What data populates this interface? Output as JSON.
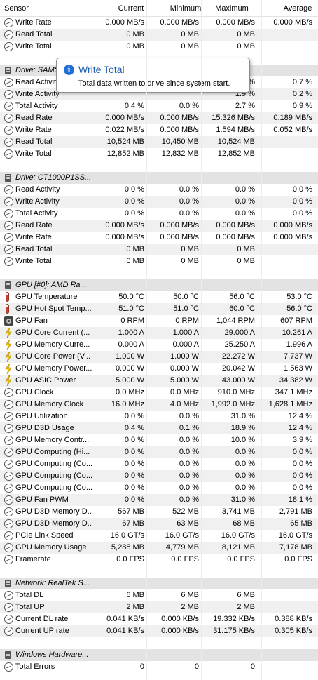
{
  "columns": [
    "Sensor",
    "Current",
    "Minimum",
    "Maximum",
    "Average"
  ],
  "rows": [
    {
      "kind": "sensor",
      "icon": "clock-icon",
      "cells": [
        "Write Rate",
        "0.000 MB/s",
        "0.000 MB/s",
        "0.000 MB/s",
        "0.000 MB/s"
      ]
    },
    {
      "kind": "sensor",
      "icon": "clock-icon",
      "cells": [
        "Read Total",
        "0 MB",
        "0 MB",
        "0 MB",
        ""
      ]
    },
    {
      "kind": "sensor",
      "icon": "clock-icon",
      "cells": [
        "Write Total",
        "0 MB",
        "0 MB",
        "0 MB",
        ""
      ]
    },
    {
      "kind": "gap"
    },
    {
      "kind": "group",
      "icon": "drive-icon",
      "label": "Drive: SAMS"
    },
    {
      "kind": "sensor",
      "icon": "clock-icon",
      "cells": [
        "Read Activity",
        "",
        "",
        "%",
        "0.7 %"
      ]
    },
    {
      "kind": "sensor",
      "icon": "clock-icon",
      "cells": [
        "Write Activity",
        "",
        "",
        "1.9 %",
        "0.2 %"
      ]
    },
    {
      "kind": "sensor",
      "icon": "clock-icon",
      "cells": [
        "Total Activity",
        "0.4 %",
        "0.0 %",
        "2.7 %",
        "0.9 %"
      ]
    },
    {
      "kind": "sensor",
      "icon": "clock-icon",
      "cells": [
        "Read Rate",
        "0.000 MB/s",
        "0.000 MB/s",
        "15.326 MB/s",
        "0.189 MB/s"
      ]
    },
    {
      "kind": "sensor",
      "icon": "clock-icon",
      "cells": [
        "Write Rate",
        "0.022 MB/s",
        "0.000 MB/s",
        "1.594 MB/s",
        "0.052 MB/s"
      ]
    },
    {
      "kind": "sensor",
      "icon": "clock-icon",
      "cells": [
        "Read Total",
        "10,524 MB",
        "10,450 MB",
        "10,524 MB",
        ""
      ]
    },
    {
      "kind": "sensor",
      "icon": "clock-icon",
      "cells": [
        "Write Total",
        "12,852 MB",
        "12,832 MB",
        "12,852 MB",
        ""
      ]
    },
    {
      "kind": "gap"
    },
    {
      "kind": "group",
      "icon": "drive-icon",
      "label": "Drive: CT1000P1SS..."
    },
    {
      "kind": "sensor",
      "icon": "clock-icon",
      "cells": [
        "Read Activity",
        "0.0 %",
        "0.0 %",
        "0.0 %",
        "0.0 %"
      ]
    },
    {
      "kind": "sensor",
      "icon": "clock-icon",
      "cells": [
        "Write Activity",
        "0.0 %",
        "0.0 %",
        "0.0 %",
        "0.0 %"
      ]
    },
    {
      "kind": "sensor",
      "icon": "clock-icon",
      "cells": [
        "Total Activity",
        "0.0 %",
        "0.0 %",
        "0.0 %",
        "0.0 %"
      ]
    },
    {
      "kind": "sensor",
      "icon": "clock-icon",
      "cells": [
        "Read Rate",
        "0.000 MB/s",
        "0.000 MB/s",
        "0.000 MB/s",
        "0.000 MB/s"
      ]
    },
    {
      "kind": "sensor",
      "icon": "clock-icon",
      "cells": [
        "Write Rate",
        "0.000 MB/s",
        "0.000 MB/s",
        "0.000 MB/s",
        "0.000 MB/s"
      ]
    },
    {
      "kind": "sensor",
      "icon": "clock-icon",
      "cells": [
        "Read Total",
        "0 MB",
        "0 MB",
        "0 MB",
        ""
      ]
    },
    {
      "kind": "sensor",
      "icon": "clock-icon",
      "cells": [
        "Write Total",
        "0 MB",
        "0 MB",
        "0 MB",
        ""
      ]
    },
    {
      "kind": "gap"
    },
    {
      "kind": "group",
      "icon": "gpu-icon",
      "label": "GPU [#0]: AMD Ra..."
    },
    {
      "kind": "sensor",
      "icon": "thermometer-icon",
      "cells": [
        "GPU Temperature",
        "50.0 °C",
        "50.0 °C",
        "56.0 °C",
        "53.0 °C"
      ]
    },
    {
      "kind": "sensor",
      "icon": "thermometer-icon",
      "cells": [
        "GPU Hot Spot Temp...",
        "51.0 °C",
        "51.0 °C",
        "60.0 °C",
        "56.0 °C"
      ]
    },
    {
      "kind": "sensor",
      "icon": "fan-icon",
      "cells": [
        "GPU Fan",
        "0 RPM",
        "0 RPM",
        "1,044 RPM",
        "607 RPM"
      ]
    },
    {
      "kind": "sensor",
      "icon": "bolt-icon",
      "cells": [
        "GPU Core Current (...",
        "1.000 A",
        "1.000 A",
        "29.000 A",
        "10.261 A"
      ]
    },
    {
      "kind": "sensor",
      "icon": "bolt-icon",
      "cells": [
        "GPU Memory Curre...",
        "0.000 A",
        "0.000 A",
        "25.250 A",
        "1.996 A"
      ]
    },
    {
      "kind": "sensor",
      "icon": "bolt-icon",
      "cells": [
        "GPU Core Power (V...",
        "1.000 W",
        "1.000 W",
        "22.272 W",
        "7.737 W"
      ]
    },
    {
      "kind": "sensor",
      "icon": "bolt-icon",
      "cells": [
        "GPU Memory Power...",
        "0.000 W",
        "0.000 W",
        "20.042 W",
        "1.563 W"
      ]
    },
    {
      "kind": "sensor",
      "icon": "bolt-icon",
      "cells": [
        "GPU ASIC Power",
        "5.000 W",
        "5.000 W",
        "43.000 W",
        "34.382 W"
      ]
    },
    {
      "kind": "sensor",
      "icon": "clock-icon",
      "cells": [
        "GPU Clock",
        "0.0 MHz",
        "0.0 MHz",
        "910.0 MHz",
        "347.1 MHz"
      ]
    },
    {
      "kind": "sensor",
      "icon": "clock-icon",
      "cells": [
        "GPU Memory Clock",
        "16.0 MHz",
        "4.0 MHz",
        "1,992.0 MHz",
        "1,628.1 MHz"
      ]
    },
    {
      "kind": "sensor",
      "icon": "clock-icon",
      "cells": [
        "GPU Utilization",
        "0.0 %",
        "0.0 %",
        "31.0 %",
        "12.4 %"
      ]
    },
    {
      "kind": "sensor",
      "icon": "clock-icon",
      "cells": [
        "GPU D3D Usage",
        "0.4 %",
        "0.1 %",
        "18.9 %",
        "12.4 %"
      ]
    },
    {
      "kind": "sensor",
      "icon": "clock-icon",
      "cells": [
        "GPU Memory Contr...",
        "0.0 %",
        "0.0 %",
        "10.0 %",
        "3.9 %"
      ]
    },
    {
      "kind": "sensor",
      "icon": "clock-icon",
      "cells": [
        "GPU Computing (Hi...",
        "0.0 %",
        "0.0 %",
        "0.0 %",
        "0.0 %"
      ]
    },
    {
      "kind": "sensor",
      "icon": "clock-icon",
      "cells": [
        "GPU Computing (Co...",
        "0.0 %",
        "0.0 %",
        "0.0 %",
        "0.0 %"
      ]
    },
    {
      "kind": "sensor",
      "icon": "clock-icon",
      "cells": [
        "GPU Computing (Co...",
        "0.0 %",
        "0.0 %",
        "0.0 %",
        "0.0 %"
      ]
    },
    {
      "kind": "sensor",
      "icon": "clock-icon",
      "cells": [
        "GPU Computing (Co...",
        "0.0 %",
        "0.0 %",
        "0.0 %",
        "0.0 %"
      ]
    },
    {
      "kind": "sensor",
      "icon": "clock-icon",
      "cells": [
        "GPU Fan PWM",
        "0.0 %",
        "0.0 %",
        "31.0 %",
        "18.1 %"
      ]
    },
    {
      "kind": "sensor",
      "icon": "clock-icon",
      "cells": [
        "GPU D3D Memory D...",
        "567 MB",
        "522 MB",
        "3,741 MB",
        "2,791 MB"
      ]
    },
    {
      "kind": "sensor",
      "icon": "clock-icon",
      "cells": [
        "GPU D3D Memory D...",
        "67 MB",
        "63 MB",
        "68 MB",
        "65 MB"
      ]
    },
    {
      "kind": "sensor",
      "icon": "clock-icon",
      "cells": [
        "PCIe Link Speed",
        "16.0 GT/s",
        "16.0 GT/s",
        "16.0 GT/s",
        "16.0 GT/s"
      ]
    },
    {
      "kind": "sensor",
      "icon": "clock-icon",
      "cells": [
        "GPU Memory Usage",
        "5,288 MB",
        "4,779 MB",
        "8,121 MB",
        "7,178 MB"
      ]
    },
    {
      "kind": "sensor",
      "icon": "clock-icon",
      "cells": [
        "Framerate",
        "0.0 FPS",
        "0.0 FPS",
        "0.0 FPS",
        "0.0 FPS"
      ]
    },
    {
      "kind": "gap"
    },
    {
      "kind": "group",
      "icon": "network-icon",
      "label": "Network: RealTek S..."
    },
    {
      "kind": "sensor",
      "icon": "clock-icon",
      "cells": [
        "Total DL",
        "6 MB",
        "6 MB",
        "6 MB",
        ""
      ]
    },
    {
      "kind": "sensor",
      "icon": "clock-icon",
      "cells": [
        "Total UP",
        "2 MB",
        "2 MB",
        "2 MB",
        ""
      ]
    },
    {
      "kind": "sensor",
      "icon": "clock-icon",
      "cells": [
        "Current DL rate",
        "0.041 KB/s",
        "0.000 KB/s",
        "19.332 KB/s",
        "0.388 KB/s"
      ]
    },
    {
      "kind": "sensor",
      "icon": "clock-icon",
      "cells": [
        "Current UP rate",
        "0.041 KB/s",
        "0.000 KB/s",
        "31.175 KB/s",
        "0.305 KB/s"
      ]
    },
    {
      "kind": "gap"
    },
    {
      "kind": "group",
      "icon": "windows-icon",
      "label": "Windows Hardware..."
    },
    {
      "kind": "sensor",
      "icon": "clock-icon",
      "cells": [
        "Total Errors",
        "0",
        "0",
        "0",
        ""
      ]
    }
  ],
  "tooltip": {
    "title": "Write Total",
    "body": "Total data written to drive since system start.",
    "info_glyph": "i"
  },
  "colors": {
    "tooltip_title": "#1f5fae",
    "info_icon": "#1f6fd6",
    "row_alt": "#f0f0f0",
    "group_bg": "#e3e3e3"
  }
}
